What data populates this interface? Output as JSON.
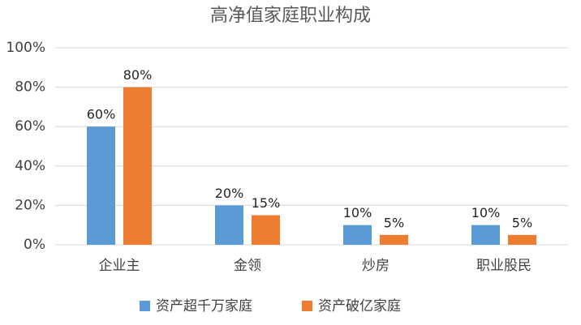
{
  "chart_data": {
    "type": "bar",
    "title": "高净值家庭职业构成",
    "categories": [
      "企业主",
      "金领",
      "炒房",
      "职业股民"
    ],
    "series": [
      {
        "name": "资产超千万家庭",
        "color": "#5b9bd5",
        "values": [
          60,
          20,
          10,
          10
        ],
        "value_labels": [
          "60%",
          "20%",
          "10%",
          "10%"
        ]
      },
      {
        "name": "资产破亿家庭",
        "color": "#ed7d31",
        "values": [
          80,
          15,
          5,
          5
        ],
        "value_labels": [
          "80%",
          "15%",
          "5%",
          "5%"
        ]
      }
    ],
    "ylim": [
      0,
      100
    ],
    "yticks": [
      {
        "value": 0,
        "label": "0%"
      },
      {
        "value": 20,
        "label": "20%"
      },
      {
        "value": 40,
        "label": "40%"
      },
      {
        "value": 60,
        "label": "60%"
      },
      {
        "value": 80,
        "label": "80%"
      },
      {
        "value": 100,
        "label": "100%"
      }
    ],
    "grid": true
  }
}
